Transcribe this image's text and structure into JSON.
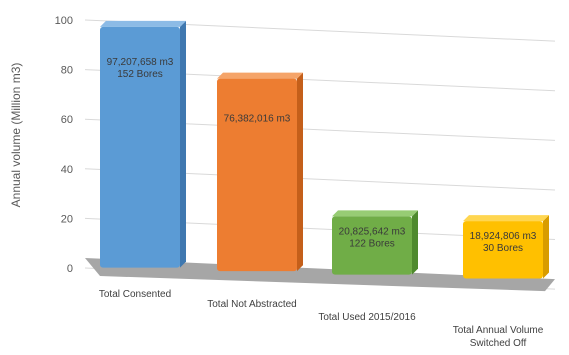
{
  "chart_data": {
    "type": "bar",
    "title": "",
    "xlabel": "",
    "ylabel": "Annual volume (Million m3)",
    "ylim": [
      0,
      100
    ],
    "yticks": [
      0,
      20,
      40,
      60,
      80,
      100
    ],
    "grid": true,
    "categories": [
      "Total Consented",
      "Total Not Abstracted",
      "Total Used 2015/2016",
      "Total Annual Volume Switched Off"
    ],
    "category_label_lines": [
      [
        "Total Consented"
      ],
      [
        "Total Not Abstracted"
      ],
      [
        "Total Used 2015/2016"
      ],
      [
        "Total Annual Volume",
        "Switched Off"
      ]
    ],
    "values": [
      97.207658,
      76.382016,
      20.825642,
      18.924806
    ],
    "data_labels": [
      [
        "97,207,658 m3",
        "152 Bores"
      ],
      [
        "76,382,016 m3"
      ],
      [
        "20,825,642 m3",
        "122 Bores"
      ],
      [
        "18,924,806 m3",
        "30 Bores"
      ]
    ],
    "colors": [
      "#5b9bd5",
      "#ed7d31",
      "#70ad47",
      "#ffc000"
    ],
    "side_colors": [
      "#3f78b0",
      "#c45f1a",
      "#4f8a2e",
      "#d89c00"
    ],
    "top_colors": [
      "#8cbbe6",
      "#f5a469",
      "#97cc74",
      "#ffd650"
    ]
  }
}
